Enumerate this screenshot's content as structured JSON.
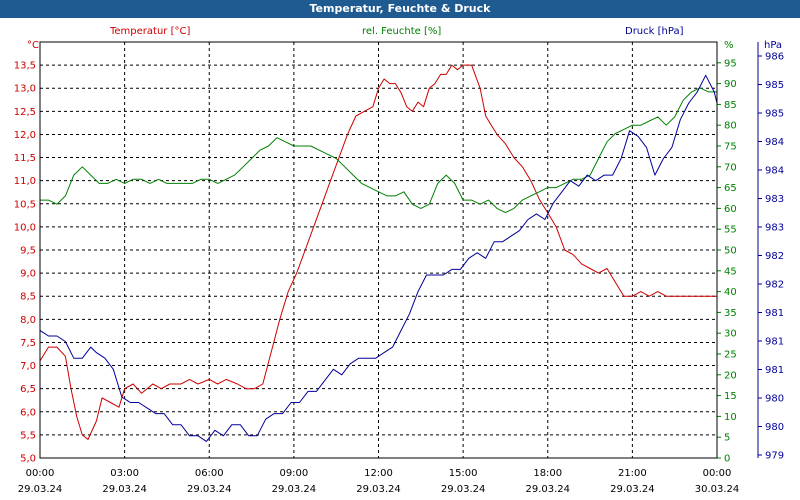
{
  "window": {
    "title": "Temperatur, Feuchte & Druck"
  },
  "colors": {
    "temperature": "#cc0000",
    "humidity": "#008000",
    "pressure": "#000099",
    "title_bg": "#1f5a91"
  },
  "chart_data": {
    "type": "line",
    "title": "Temperatur, Feuchte & Druck",
    "grid": true,
    "x_ticks": [
      {
        "time": "00:00",
        "date": "29.03.24"
      },
      {
        "time": "03:00",
        "date": "29.03.24"
      },
      {
        "time": "06:00",
        "date": "29.03.24"
      },
      {
        "time": "09:00",
        "date": "29.03.24"
      },
      {
        "time": "12:00",
        "date": "29.03.24"
      },
      {
        "time": "15:00",
        "date": "29.03.24"
      },
      {
        "time": "18:00",
        "date": "29.03.24"
      },
      {
        "time": "21:00",
        "date": "29.03.24"
      },
      {
        "time": "00:00",
        "date": "30.03.24"
      }
    ],
    "xlim": [
      0,
      24
    ],
    "axes": {
      "temperature": {
        "label": "Temperatur [°C]",
        "unit": "°C",
        "ylim": [
          5.0,
          14.0
        ],
        "ticks": [
          "5,0",
          "5,5",
          "6,0",
          "6,5",
          "7,0",
          "7,5",
          "8,0",
          "8,5",
          "9,0",
          "9,5",
          "10,0",
          "10,5",
          "11,0",
          "11,5",
          "12,0",
          "12,5",
          "13,0",
          "13,5"
        ]
      },
      "humidity": {
        "label": "rel. Feuchte [%]",
        "unit": "%",
        "ylim": [
          0,
          100
        ],
        "ticks": [
          "0",
          "5",
          "10",
          "15",
          "20",
          "25",
          "30",
          "35",
          "40",
          "45",
          "50",
          "55",
          "60",
          "65",
          "70",
          "75",
          "80",
          "85",
          "90",
          "95"
        ]
      },
      "pressure": {
        "label": "Druck [hPa]",
        "unit": "hPa",
        "ylim": [
          979.0,
          986.5
        ],
        "ticks": [
          "979",
          "980",
          "980",
          "981",
          "981",
          "981",
          "982",
          "982",
          "983",
          "983",
          "984",
          "984",
          "985",
          "985",
          "986"
        ]
      }
    },
    "series": [
      {
        "name": "Temperatur [°C]",
        "axis": "temperature",
        "x": [
          0,
          0.3,
          0.6,
          0.9,
          1.1,
          1.3,
          1.5,
          1.7,
          2.0,
          2.2,
          2.5,
          2.8,
          3.0,
          3.3,
          3.6,
          4.0,
          4.3,
          4.6,
          5.0,
          5.3,
          5.6,
          6.0,
          6.3,
          6.6,
          7.0,
          7.3,
          7.6,
          7.9,
          8.2,
          8.5,
          8.8,
          9.1,
          9.4,
          9.7,
          10.0,
          10.3,
          10.6,
          10.9,
          11.2,
          11.5,
          11.8,
          12.0,
          12.2,
          12.4,
          12.6,
          12.8,
          13.0,
          13.2,
          13.4,
          13.6,
          13.8,
          14.0,
          14.2,
          14.4,
          14.6,
          14.8,
          15.0,
          15.3,
          15.6,
          15.8,
          16.0,
          16.2,
          16.5,
          16.8,
          17.1,
          17.4,
          17.7,
          18.0,
          18.3,
          18.6,
          18.9,
          19.2,
          19.5,
          19.8,
          20.1,
          20.4,
          20.7,
          21.0,
          21.3,
          21.6,
          21.9,
          22.2,
          22.5,
          22.8,
          23.1,
          23.4,
          23.7,
          24.0
        ],
        "values": [
          7.1,
          7.4,
          7.4,
          7.2,
          6.5,
          5.9,
          5.5,
          5.4,
          5.8,
          6.3,
          6.2,
          6.1,
          6.5,
          6.6,
          6.4,
          6.6,
          6.5,
          6.6,
          6.6,
          6.7,
          6.6,
          6.7,
          6.6,
          6.7,
          6.6,
          6.5,
          6.5,
          6.6,
          7.3,
          8.0,
          8.6,
          9.0,
          9.5,
          10.0,
          10.5,
          11.0,
          11.5,
          12.0,
          12.4,
          12.5,
          12.6,
          13.0,
          13.2,
          13.1,
          13.1,
          12.9,
          12.6,
          12.5,
          12.7,
          12.6,
          13.0,
          13.1,
          13.3,
          13.3,
          13.5,
          13.4,
          13.5,
          13.5,
          13.0,
          12.4,
          12.2,
          12.0,
          11.8,
          11.5,
          11.3,
          11.0,
          10.6,
          10.3,
          10.0,
          9.5,
          9.4,
          9.2,
          9.1,
          9.0,
          9.1,
          8.8,
          8.5,
          8.5,
          8.6,
          8.5,
          8.6,
          8.5,
          8.5,
          8.5,
          8.5,
          8.5,
          8.5,
          8.5
        ]
      },
      {
        "name": "rel. Feuchte [%]",
        "axis": "humidity",
        "x": [
          0,
          0.3,
          0.6,
          0.9,
          1.2,
          1.5,
          1.8,
          2.1,
          2.4,
          2.7,
          3.0,
          3.3,
          3.6,
          3.9,
          4.2,
          4.5,
          4.8,
          5.1,
          5.4,
          5.7,
          6.0,
          6.3,
          6.6,
          6.9,
          7.2,
          7.5,
          7.8,
          8.1,
          8.4,
          8.7,
          9.0,
          9.3,
          9.6,
          9.9,
          10.2,
          10.5,
          10.8,
          11.1,
          11.4,
          11.7,
          12.0,
          12.3,
          12.6,
          12.9,
          13.2,
          13.5,
          13.8,
          14.1,
          14.4,
          14.7,
          15.0,
          15.3,
          15.6,
          15.9,
          16.2,
          16.5,
          16.8,
          17.1,
          17.4,
          17.7,
          18.0,
          18.3,
          18.6,
          18.9,
          19.2,
          19.5,
          19.8,
          20.1,
          20.4,
          20.7,
          21.0,
          21.3,
          21.6,
          21.9,
          22.2,
          22.5,
          22.8,
          23.1,
          23.4,
          23.7,
          24.0
        ],
        "values": [
          62,
          62,
          61,
          63,
          68,
          70,
          68,
          66,
          66,
          67,
          66,
          67,
          67,
          66,
          67,
          66,
          66,
          66,
          66,
          67,
          67,
          66,
          67,
          68,
          70,
          72,
          74,
          75,
          77,
          76,
          75,
          75,
          75,
          74,
          73,
          72,
          70,
          68,
          66,
          65,
          64,
          63,
          63,
          64,
          61,
          60,
          61,
          66,
          68,
          66,
          62,
          62,
          61,
          62,
          60,
          59,
          60,
          62,
          63,
          64,
          65,
          65,
          66,
          67,
          67,
          68,
          72,
          76,
          78,
          79,
          80,
          80,
          81,
          82,
          80,
          82,
          86,
          88,
          89,
          88,
          88
        ]
      },
      {
        "name": "Druck [hPa]",
        "axis": "pressure",
        "x": [
          0,
          0.3,
          0.6,
          0.9,
          1.2,
          1.5,
          1.8,
          2.0,
          2.3,
          2.6,
          2.9,
          3.2,
          3.5,
          3.8,
          4.1,
          4.4,
          4.7,
          5.0,
          5.3,
          5.6,
          5.9,
          6.2,
          6.5,
          6.8,
          7.1,
          7.4,
          7.7,
          8.0,
          8.3,
          8.6,
          8.9,
          9.2,
          9.5,
          9.8,
          10.1,
          10.4,
          10.7,
          11.0,
          11.3,
          11.6,
          11.9,
          12.2,
          12.5,
          12.8,
          13.1,
          13.4,
          13.7,
          14.0,
          14.3,
          14.6,
          14.9,
          15.2,
          15.5,
          15.8,
          16.1,
          16.4,
          16.7,
          17.0,
          17.3,
          17.6,
          17.9,
          18.2,
          18.5,
          18.8,
          19.1,
          19.4,
          19.7,
          20.0,
          20.3,
          20.6,
          20.9,
          21.2,
          21.5,
          21.8,
          22.1,
          22.4,
          22.7,
          23.0,
          23.3,
          23.6,
          23.9,
          24.0
        ],
        "values": [
          981.3,
          981.2,
          981.2,
          981.1,
          980.8,
          980.8,
          981.0,
          980.9,
          980.8,
          980.6,
          980.1,
          980.0,
          980.0,
          979.9,
          979.8,
          979.8,
          979.6,
          979.6,
          979.4,
          979.4,
          979.3,
          979.5,
          979.4,
          979.6,
          979.6,
          979.4,
          979.4,
          979.7,
          979.8,
          979.8,
          980.0,
          980.0,
          980.2,
          980.2,
          980.4,
          980.6,
          980.5,
          980.7,
          980.8,
          980.8,
          980.8,
          980.9,
          981.0,
          981.3,
          981.6,
          982.0,
          982.3,
          982.3,
          982.3,
          982.4,
          982.4,
          982.6,
          982.7,
          982.6,
          982.9,
          982.9,
          983.0,
          983.1,
          983.3,
          983.4,
          983.3,
          983.6,
          983.8,
          984.0,
          983.9,
          984.1,
          984.0,
          984.1,
          984.1,
          984.4,
          984.9,
          984.8,
          984.6,
          984.1,
          984.4,
          984.6,
          985.1,
          985.4,
          985.6,
          985.9,
          985.6,
          985.4
        ]
      }
    ]
  }
}
